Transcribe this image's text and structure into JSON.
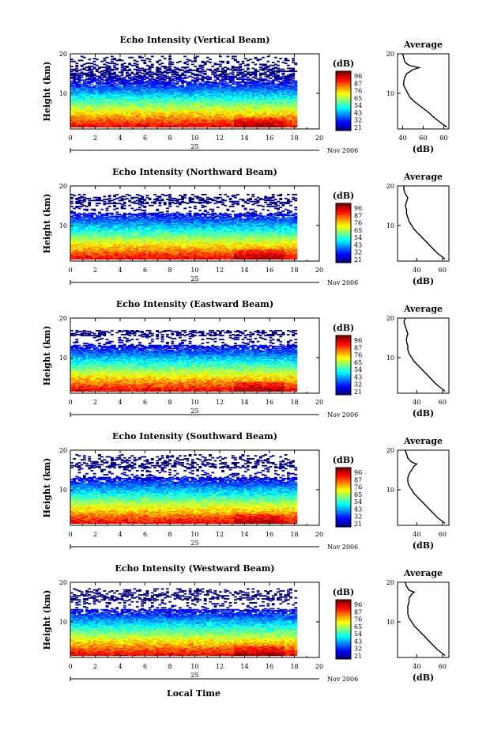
{
  "x_label_bottom": "Local Time",
  "date_label": "Nov 2006",
  "day_label": "25",
  "colorbar": {
    "unit": "(dB)",
    "tick_labels": [
      "96",
      "87",
      "76",
      "65",
      "54",
      "43",
      "32",
      "21"
    ]
  },
  "average": {
    "title": "Average",
    "xlabel": "(dB)"
  },
  "chart_data": [
    {
      "type": "heatmap",
      "title": "Echo Intensity (Vertical Beam)",
      "ylabel": "Height (km)",
      "xlim": [
        0,
        20
      ],
      "ylim": [
        1,
        20
      ],
      "x_ticks": [
        0,
        2,
        4,
        6,
        8,
        10,
        12,
        14,
        16,
        18,
        20
      ],
      "y_ticks": [
        10,
        20
      ],
      "data_end_x": 18.2,
      "clim": [
        21,
        96
      ],
      "top_extent_km": 19.5,
      "average_profile": {
        "xlim": [
          35,
          85
        ],
        "x_ticks": [
          40,
          60,
          80
        ],
        "ylim": [
          1,
          20
        ],
        "y_ticks": [
          10,
          20
        ],
        "height_km": [
          1.5,
          2,
          3,
          4,
          5,
          6,
          7,
          8,
          9,
          10,
          11,
          12,
          13,
          14,
          15,
          16,
          16.5,
          17,
          17.5,
          18,
          19,
          20
        ],
        "db": [
          83,
          80,
          75,
          70,
          66,
          61,
          56,
          51,
          47,
          45,
          43,
          41,
          41,
          42,
          44,
          50,
          56,
          47,
          44,
          42,
          41,
          40
        ]
      }
    },
    {
      "type": "heatmap",
      "title": "Echo Intensity (Northward Beam)",
      "ylabel": "Height (km)",
      "xlim": [
        0,
        20
      ],
      "ylim": [
        1,
        20
      ],
      "x_ticks": [
        0,
        2,
        4,
        6,
        8,
        10,
        12,
        14,
        16,
        18,
        20
      ],
      "y_ticks": [
        10,
        20
      ],
      "data_end_x": 18.2,
      "clim": [
        21,
        96
      ],
      "top_extent_km": 18,
      "average_profile": {
        "xlim": [
          25,
          65
        ],
        "x_ticks": [
          40,
          60
        ],
        "ylim": [
          1,
          20
        ],
        "y_ticks": [
          10,
          20
        ],
        "height_km": [
          1.5,
          2,
          3,
          4,
          5,
          6,
          7,
          8,
          9,
          10,
          11,
          12,
          13,
          14,
          15,
          16,
          17,
          18,
          19,
          20
        ],
        "db": [
          62,
          60,
          56,
          53,
          50,
          47,
          44,
          41,
          38,
          36,
          34,
          33,
          32,
          32,
          31,
          32,
          33,
          31,
          30,
          30
        ]
      }
    },
    {
      "type": "heatmap",
      "title": "Echo Intensity (Eastward Beam)",
      "ylabel": "Height (km)",
      "xlim": [
        0,
        20
      ],
      "ylim": [
        1,
        20
      ],
      "x_ticks": [
        0,
        2,
        4,
        6,
        8,
        10,
        12,
        14,
        16,
        18,
        20
      ],
      "y_ticks": [
        10,
        20
      ],
      "data_end_x": 18.2,
      "clim": [
        21,
        96
      ],
      "top_extent_km": 17,
      "average_profile": {
        "xlim": [
          25,
          65
        ],
        "x_ticks": [
          40,
          60
        ],
        "ylim": [
          1,
          20
        ],
        "y_ticks": [
          10,
          20
        ],
        "height_km": [
          1.5,
          2,
          3,
          4,
          5,
          6,
          7,
          8,
          9,
          10,
          11,
          12,
          13,
          14,
          15,
          16,
          17,
          18,
          19,
          20
        ],
        "db": [
          62,
          60,
          56,
          53,
          50,
          47,
          44,
          41,
          38,
          36,
          34,
          33,
          33,
          32,
          32,
          33,
          32,
          31,
          30,
          31
        ]
      }
    },
    {
      "type": "heatmap",
      "title": "Echo Intensity (Southward Beam)",
      "ylabel": "Height (km)",
      "xlim": [
        0,
        20
      ],
      "ylim": [
        1,
        20
      ],
      "x_ticks": [
        0,
        2,
        4,
        6,
        8,
        10,
        12,
        14,
        16,
        18,
        20
      ],
      "y_ticks": [
        10,
        20
      ],
      "data_end_x": 18.2,
      "clim": [
        21,
        96
      ],
      "top_extent_km": 19,
      "average_profile": {
        "xlim": [
          25,
          65
        ],
        "x_ticks": [
          40,
          60
        ],
        "ylim": [
          1,
          20
        ],
        "y_ticks": [
          10,
          20
        ],
        "height_km": [
          1.5,
          2,
          3,
          4,
          5,
          6,
          7,
          8,
          9,
          10,
          11,
          12,
          13,
          14,
          15,
          16,
          16.5,
          17,
          18,
          19,
          20
        ],
        "db": [
          62,
          60,
          56,
          53,
          50,
          47,
          44,
          41,
          38,
          36,
          34,
          33,
          33,
          34,
          36,
          38,
          40,
          36,
          33,
          32,
          31
        ]
      }
    },
    {
      "type": "heatmap",
      "title": "Echo Intensity (Westward Beam)",
      "ylabel": "Height (km)",
      "xlim": [
        0,
        20
      ],
      "ylim": [
        1,
        20
      ],
      "x_ticks": [
        0,
        2,
        4,
        6,
        8,
        10,
        12,
        14,
        16,
        18,
        20
      ],
      "y_ticks": [
        10,
        20
      ],
      "data_end_x": 18.2,
      "clim": [
        21,
        96
      ],
      "top_extent_km": 18.5,
      "average_profile": {
        "xlim": [
          25,
          65
        ],
        "x_ticks": [
          40,
          60
        ],
        "ylim": [
          1,
          20
        ],
        "y_ticks": [
          10,
          20
        ],
        "height_km": [
          1.5,
          2,
          3,
          4,
          5,
          6,
          7,
          8,
          9,
          10,
          11,
          12,
          13,
          14,
          15,
          16,
          17,
          17.5,
          18,
          19,
          20
        ],
        "db": [
          62,
          60,
          56,
          53,
          50,
          47,
          44,
          41,
          38,
          36,
          34,
          33,
          33,
          33,
          34,
          34,
          36,
          38,
          34,
          32,
          31
        ]
      }
    }
  ]
}
